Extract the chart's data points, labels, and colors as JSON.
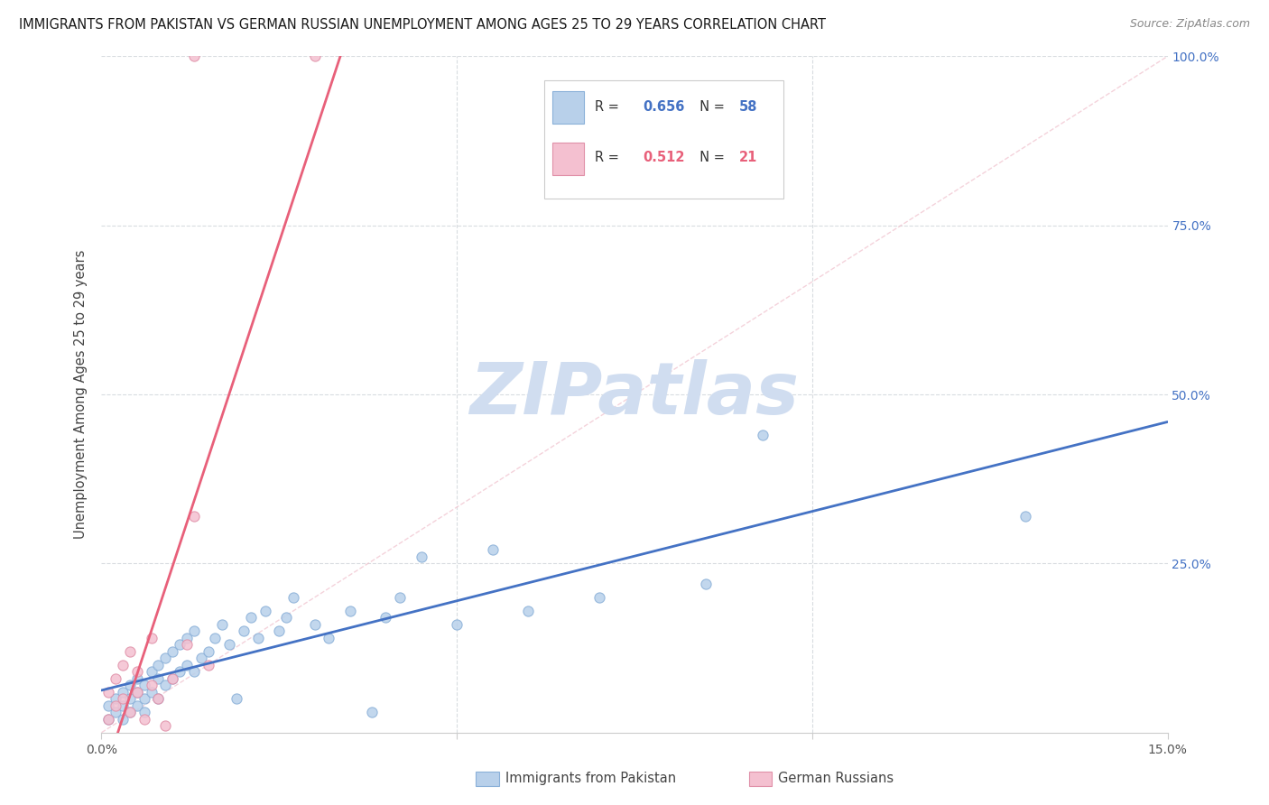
{
  "title": "IMMIGRANTS FROM PAKISTAN VS GERMAN RUSSIAN UNEMPLOYMENT AMONG AGES 25 TO 29 YEARS CORRELATION CHART",
  "source": "Source: ZipAtlas.com",
  "ylabel": "Unemployment Among Ages 25 to 29 years",
  "xlim": [
    0.0,
    0.15
  ],
  "ylim": [
    0.0,
    1.0
  ],
  "xticks": [
    0.0,
    0.05,
    0.1,
    0.15
  ],
  "xtick_labels": [
    "0.0%",
    "",
    "",
    "15.0%"
  ],
  "yticks_right": [
    0.25,
    0.5,
    0.75,
    1.0
  ],
  "ytick_labels_right": [
    "25.0%",
    "50.0%",
    "75.0%",
    "100.0%"
  ],
  "series1_name": "Immigrants from Pakistan",
  "series1_color": "#b8d0ea",
  "series1_edge": "#8ab0d8",
  "series1_R": 0.656,
  "series1_N": 58,
  "series2_name": "German Russians",
  "series2_color": "#f4c0d0",
  "series2_edge": "#e090a8",
  "series2_R": 0.512,
  "series2_N": 21,
  "blue_color": "#4472c4",
  "pink_color": "#e8607a",
  "watermark_color": "#d0ddf0",
  "background_color": "#ffffff",
  "grid_color": "#d8dce0",
  "right_tick_color": "#4472c4",
  "pakistan_x": [
    0.001,
    0.001,
    0.002,
    0.002,
    0.003,
    0.003,
    0.003,
    0.004,
    0.004,
    0.004,
    0.005,
    0.005,
    0.005,
    0.006,
    0.006,
    0.006,
    0.007,
    0.007,
    0.008,
    0.008,
    0.008,
    0.009,
    0.009,
    0.01,
    0.01,
    0.011,
    0.011,
    0.012,
    0.012,
    0.013,
    0.013,
    0.014,
    0.015,
    0.016,
    0.017,
    0.018,
    0.019,
    0.02,
    0.021,
    0.022,
    0.023,
    0.025,
    0.026,
    0.027,
    0.03,
    0.032,
    0.035,
    0.038,
    0.04,
    0.042,
    0.045,
    0.05,
    0.055,
    0.06,
    0.07,
    0.085,
    0.093,
    0.13
  ],
  "pakistan_y": [
    0.02,
    0.04,
    0.03,
    0.05,
    0.02,
    0.04,
    0.06,
    0.03,
    0.05,
    0.07,
    0.04,
    0.06,
    0.08,
    0.03,
    0.05,
    0.07,
    0.06,
    0.09,
    0.05,
    0.08,
    0.1,
    0.07,
    0.11,
    0.08,
    0.12,
    0.09,
    0.13,
    0.1,
    0.14,
    0.09,
    0.15,
    0.11,
    0.12,
    0.14,
    0.16,
    0.13,
    0.05,
    0.15,
    0.17,
    0.14,
    0.18,
    0.15,
    0.17,
    0.2,
    0.16,
    0.14,
    0.18,
    0.03,
    0.17,
    0.2,
    0.26,
    0.16,
    0.27,
    0.18,
    0.2,
    0.22,
    0.44,
    0.32
  ],
  "german_x": [
    0.001,
    0.001,
    0.002,
    0.002,
    0.003,
    0.003,
    0.004,
    0.004,
    0.005,
    0.005,
    0.006,
    0.007,
    0.007,
    0.008,
    0.009,
    0.01,
    0.012,
    0.013,
    0.015,
    0.013,
    0.03
  ],
  "german_y": [
    0.02,
    0.06,
    0.04,
    0.08,
    0.05,
    0.1,
    0.03,
    0.12,
    0.06,
    0.09,
    0.02,
    0.07,
    0.14,
    0.05,
    0.01,
    0.08,
    0.13,
    0.32,
    0.1,
    1.0,
    1.0
  ]
}
